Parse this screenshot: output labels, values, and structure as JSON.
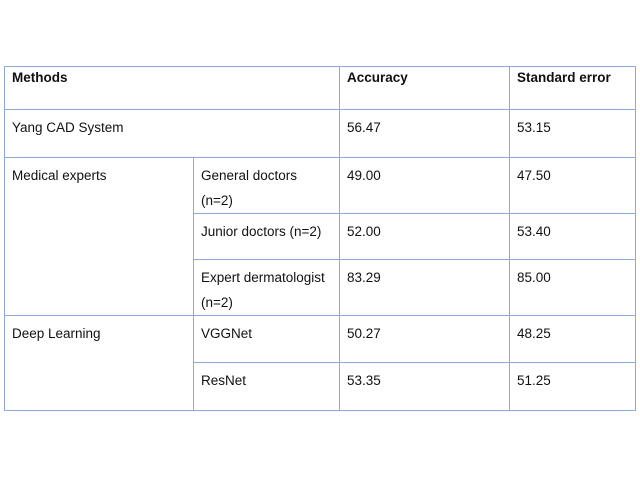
{
  "table": {
    "headers": {
      "methods": "Methods",
      "accuracy": "Accuracy",
      "standard_error": "Standard error"
    },
    "rows": {
      "yang": {
        "method": "Yang CAD System",
        "accuracy": "56.47",
        "standard_error": "53.15"
      },
      "medical_experts": {
        "group": "Medical experts",
        "general_doctors": {
          "label": "General doctors (n=2)",
          "accuracy": "49.00",
          "standard_error": "47.50"
        },
        "junior_doctors": {
          "label": "Junior doctors (n=2)",
          "accuracy": "52.00",
          "standard_error": "53.40"
        },
        "expert_dermatologist": {
          "label": "Expert dermatologist (n=2)",
          "accuracy": "83.29",
          "standard_error": "85.00"
        }
      },
      "deep_learning": {
        "group": "Deep Learning",
        "vggnet": {
          "label": "VGGNet",
          "accuracy": "50.27",
          "standard_error": "48.25"
        },
        "resnet": {
          "label": "ResNet",
          "accuracy": "53.35",
          "standard_error": "51.25"
        }
      }
    }
  }
}
